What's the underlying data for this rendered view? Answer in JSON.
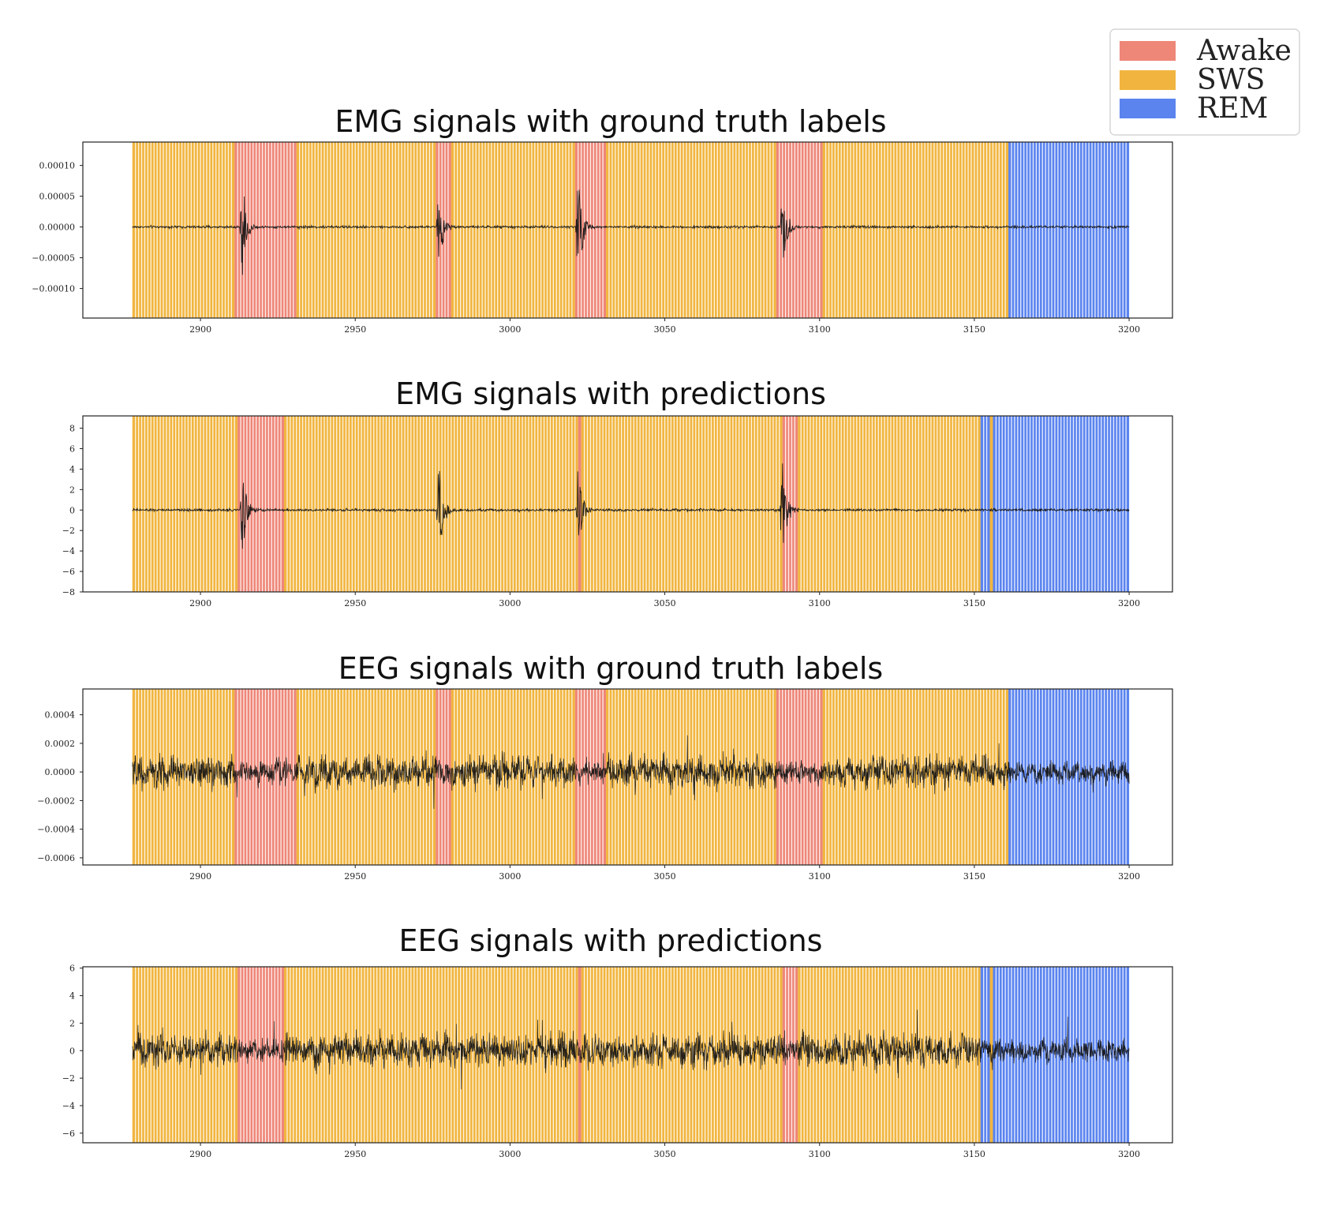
{
  "colors": {
    "Awake": "#ee8778",
    "SWS": "#f1b53f",
    "REM": "#5b84ef",
    "signal": "#111111"
  },
  "legend": [
    {
      "label": "Awake",
      "color": "#ee8778"
    },
    {
      "label": "SWS",
      "color": "#f1b53f"
    },
    {
      "label": "REM",
      "color": "#5b84ef"
    }
  ],
  "chart_data": [
    {
      "type": "line",
      "title": "EMG signals with ground truth labels",
      "signal": "EMG",
      "xlim": [
        2862,
        3214
      ],
      "ylim": [
        -0.000148,
        0.000138
      ],
      "x_ticks": [
        2900,
        2950,
        3000,
        3050,
        3100,
        3150,
        3200
      ],
      "y_ticks": [
        -0.0001,
        -5e-05,
        0.0,
        5e-05,
        0.0001
      ],
      "y_tick_labels": [
        "−0.00010",
        "−0.00005",
        "0.00000",
        "0.00005",
        "0.00010"
      ],
      "segments": [
        {
          "start": 2878,
          "end": 2911,
          "label": "SWS"
        },
        {
          "start": 2911,
          "end": 2931,
          "label": "Awake"
        },
        {
          "start": 2931,
          "end": 2976,
          "label": "SWS"
        },
        {
          "start": 2976,
          "end": 2981,
          "label": "Awake"
        },
        {
          "start": 2981,
          "end": 3021,
          "label": "SWS"
        },
        {
          "start": 3021,
          "end": 3031,
          "label": "Awake"
        },
        {
          "start": 3031,
          "end": 3086,
          "label": "SWS"
        },
        {
          "start": 3086,
          "end": 3101,
          "label": "Awake"
        },
        {
          "start": 3101,
          "end": 3161,
          "label": "SWS"
        },
        {
          "start": 3161,
          "end": 3200,
          "label": "REM"
        }
      ],
      "spikes": [
        {
          "x": 2913.5,
          "amp": 8.5e-05
        },
        {
          "x": 2977,
          "amp": 8e-05
        },
        {
          "x": 3022,
          "amp": 0.0001
        },
        {
          "x": 3088,
          "amp": 8e-05
        }
      ]
    },
    {
      "type": "line",
      "title": "EMG signals with predictions",
      "signal": "EMG",
      "xlim": [
        2862,
        3214
      ],
      "ylim": [
        -8,
        9.2
      ],
      "x_ticks": [
        2900,
        2950,
        3000,
        3050,
        3100,
        3150,
        3200
      ],
      "y_ticks": [
        -8,
        -6,
        -4,
        -2,
        0,
        2,
        4,
        6,
        8
      ],
      "y_tick_labels": [
        "−8",
        "−6",
        "−4",
        "−2",
        "0",
        "2",
        "4",
        "6",
        "8"
      ],
      "segments": [
        {
          "start": 2878,
          "end": 2912,
          "label": "SWS"
        },
        {
          "start": 2912,
          "end": 2927,
          "label": "Awake"
        },
        {
          "start": 2927,
          "end": 3022,
          "label": "SWS"
        },
        {
          "start": 3022,
          "end": 3023,
          "label": "Awake"
        },
        {
          "start": 3023,
          "end": 3088,
          "label": "SWS"
        },
        {
          "start": 3088,
          "end": 3093,
          "label": "Awake"
        },
        {
          "start": 3093,
          "end": 3152,
          "label": "SWS"
        },
        {
          "start": 3152,
          "end": 3155,
          "label": "REM"
        },
        {
          "start": 3155,
          "end": 3156,
          "label": "SWS"
        },
        {
          "start": 3156,
          "end": 3200,
          "label": "REM"
        }
      ],
      "spikes": [
        {
          "x": 2913.5,
          "amp": 4.5
        },
        {
          "x": 2977,
          "amp": 5.5
        },
        {
          "x": 3022,
          "amp": 5
        },
        {
          "x": 3088,
          "amp": 6.5
        }
      ]
    },
    {
      "type": "line",
      "title": "EEG signals with ground truth labels",
      "signal": "EEG",
      "xlim": [
        2862,
        3214
      ],
      "ylim": [
        -0.00065,
        0.00058
      ],
      "x_ticks": [
        2900,
        2950,
        3000,
        3050,
        3100,
        3150,
        3200
      ],
      "y_ticks": [
        -0.0006,
        -0.0004,
        -0.0002,
        0.0,
        0.0002,
        0.0004
      ],
      "y_tick_labels": [
        "−0.0006",
        "−0.0004",
        "−0.0002",
        "0.0000",
        "0.0002",
        "0.0004"
      ],
      "segments": [
        {
          "start": 2878,
          "end": 2911,
          "label": "SWS"
        },
        {
          "start": 2911,
          "end": 2931,
          "label": "Awake"
        },
        {
          "start": 2931,
          "end": 2976,
          "label": "SWS"
        },
        {
          "start": 2976,
          "end": 2981,
          "label": "Awake"
        },
        {
          "start": 2981,
          "end": 3021,
          "label": "SWS"
        },
        {
          "start": 3021,
          "end": 3031,
          "label": "Awake"
        },
        {
          "start": 3031,
          "end": 3086,
          "label": "SWS"
        },
        {
          "start": 3086,
          "end": 3101,
          "label": "Awake"
        },
        {
          "start": 3101,
          "end": 3161,
          "label": "SWS"
        },
        {
          "start": 3161,
          "end": 3200,
          "label": "REM"
        }
      ],
      "spikes": []
    },
    {
      "type": "line",
      "title": "EEG signals with predictions",
      "signal": "EEG",
      "xlim": [
        2862,
        3214
      ],
      "ylim": [
        -6.7,
        6.1
      ],
      "x_ticks": [
        2900,
        2950,
        3000,
        3050,
        3100,
        3150,
        3200
      ],
      "y_ticks": [
        -6,
        -4,
        -2,
        0,
        2,
        4,
        6
      ],
      "y_tick_labels": [
        "−6",
        "−4",
        "−2",
        "0",
        "2",
        "4",
        "6"
      ],
      "segments": [
        {
          "start": 2878,
          "end": 2912,
          "label": "SWS"
        },
        {
          "start": 2912,
          "end": 2927,
          "label": "Awake"
        },
        {
          "start": 2927,
          "end": 3022,
          "label": "SWS"
        },
        {
          "start": 3022,
          "end": 3023,
          "label": "Awake"
        },
        {
          "start": 3023,
          "end": 3088,
          "label": "SWS"
        },
        {
          "start": 3088,
          "end": 3093,
          "label": "Awake"
        },
        {
          "start": 3093,
          "end": 3152,
          "label": "SWS"
        },
        {
          "start": 3152,
          "end": 3155,
          "label": "REM"
        },
        {
          "start": 3155,
          "end": 3156,
          "label": "SWS"
        },
        {
          "start": 3156,
          "end": 3200,
          "label": "REM"
        }
      ],
      "spikes": []
    }
  ]
}
